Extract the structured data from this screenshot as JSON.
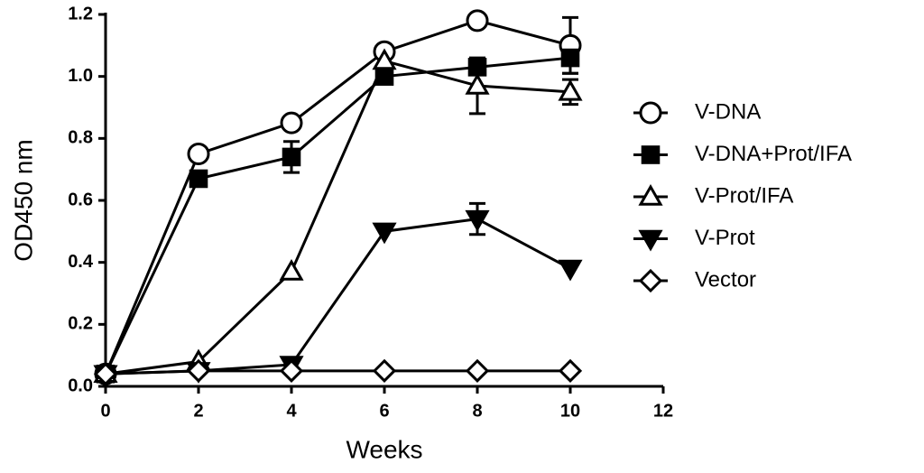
{
  "chart_data": {
    "type": "line",
    "x_label": "Weeks",
    "y_label": "OD450 nm",
    "x": [
      0,
      2,
      4,
      6,
      8,
      10
    ],
    "series": [
      {
        "name": "V-DNA",
        "color": "#000000",
        "marker": "circle",
        "filled": false,
        "values": [
          0.04,
          0.75,
          0.85,
          1.08,
          1.18,
          1.1
        ],
        "errors": [
          null,
          null,
          null,
          null,
          null,
          0.09
        ]
      },
      {
        "name": "V-DNA+Prot/IFA",
        "color": "#000000",
        "marker": "square",
        "filled": true,
        "values": [
          0.04,
          0.67,
          0.74,
          1.0,
          1.03,
          1.06
        ],
        "errors": [
          null,
          null,
          0.05,
          null,
          null,
          0.05
        ]
      },
      {
        "name": "V-Prot/IFA",
        "color": "#000000",
        "marker": "triangle-up",
        "filled": false,
        "values": [
          0.04,
          0.08,
          0.37,
          1.05,
          0.97,
          0.95
        ],
        "errors": [
          null,
          null,
          null,
          null,
          0.09,
          0.04
        ]
      },
      {
        "name": "V-Prot",
        "color": "#000000",
        "marker": "triangle-down",
        "filled": true,
        "values": [
          0.04,
          0.05,
          0.07,
          0.5,
          0.54,
          0.38
        ],
        "errors": [
          null,
          null,
          null,
          null,
          0.05,
          null
        ]
      },
      {
        "name": "Vector",
        "color": "#000000",
        "marker": "diamond",
        "filled": false,
        "values": [
          0.04,
          0.05,
          0.05,
          0.05,
          0.05,
          0.05
        ],
        "errors": [
          null,
          null,
          null,
          null,
          null,
          null
        ]
      }
    ],
    "xlim": [
      0,
      12
    ],
    "xticks": [
      0,
      2,
      4,
      6,
      8,
      10,
      12
    ],
    "ylim": [
      0,
      1.2
    ],
    "yticks": [
      {
        "value": 0,
        "label": "0.0"
      },
      0.2,
      0.4,
      0.6,
      0.8,
      {
        "value": 1,
        "label": "1.0"
      },
      1.2
    ],
    "grid": false,
    "legend": "right"
  }
}
